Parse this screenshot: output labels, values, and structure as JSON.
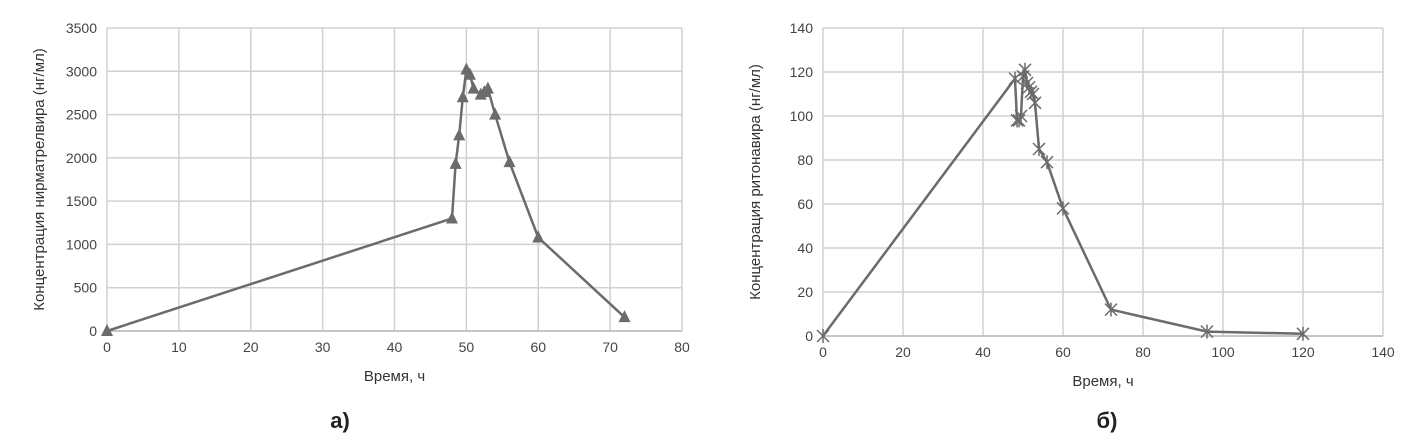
{
  "chart_data": [
    {
      "type": "line",
      "caption": "а)",
      "xlabel": "Время, ч",
      "ylabel": "Концентрация нирматрелвира (нг/мл)",
      "xlim": [
        0,
        80
      ],
      "ylim": [
        0,
        3500
      ],
      "xticks": [
        0,
        10,
        20,
        30,
        40,
        50,
        60,
        70,
        80
      ],
      "yticks": [
        0,
        500,
        1000,
        1500,
        2000,
        2500,
        3000,
        3500
      ],
      "marker": "triangle",
      "color": "#6b6b6b",
      "grid": true,
      "x": [
        0,
        48,
        48.5,
        49,
        49.5,
        50,
        50.5,
        51,
        52,
        52.5,
        53,
        54,
        56,
        60,
        72
      ],
      "y": [
        0,
        1300,
        1930,
        2260,
        2700,
        3020,
        2960,
        2800,
        2730,
        2760,
        2800,
        2500,
        1950,
        1080,
        160
      ]
    },
    {
      "type": "line",
      "caption": "б)",
      "xlabel": "Время, ч",
      "ylabel": "Концентрация ритонавира (нг/мл)",
      "xlim": [
        0,
        140
      ],
      "ylim": [
        0,
        140
      ],
      "xticks": [
        0,
        20,
        40,
        60,
        80,
        100,
        120,
        140
      ],
      "yticks": [
        0,
        20,
        40,
        60,
        80,
        100,
        120,
        140
      ],
      "marker": "star",
      "color": "#6b6b6b",
      "grid": true,
      "x": [
        0,
        48,
        48.5,
        49,
        49.5,
        50,
        50.5,
        51,
        51.5,
        52,
        52.5,
        53,
        54,
        56,
        60,
        72,
        96,
        120
      ],
      "y": [
        0,
        117,
        98,
        98,
        100,
        118,
        121,
        115,
        113,
        111,
        110,
        106,
        85,
        79,
        58,
        12,
        2,
        1
      ]
    }
  ]
}
